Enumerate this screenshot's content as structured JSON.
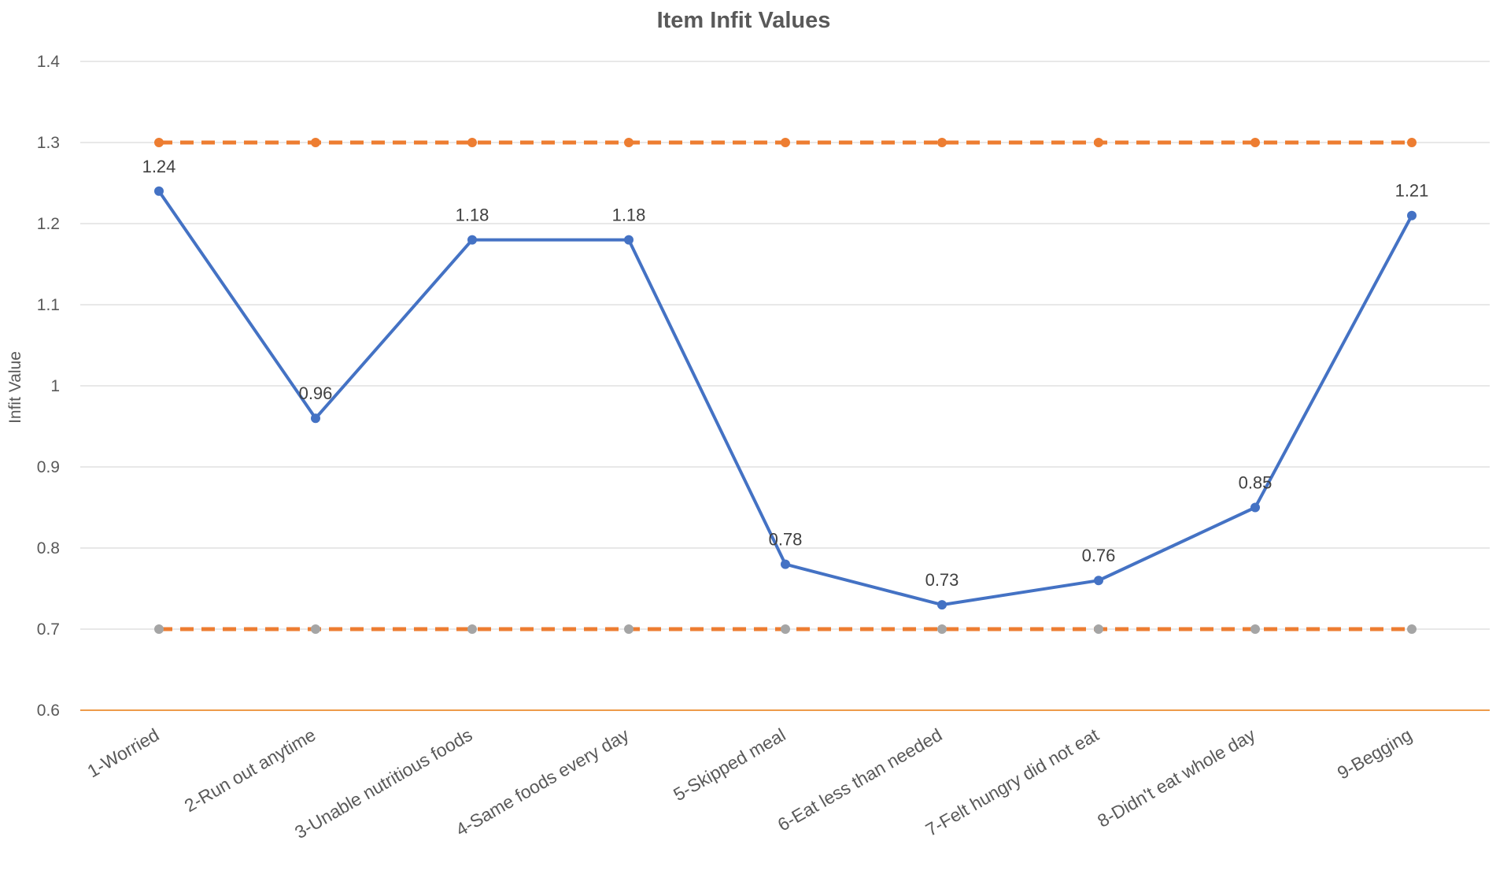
{
  "chart_data": {
    "type": "line",
    "title": "Item Infit Values",
    "xlabel": "",
    "ylabel": "Infit Value",
    "categories": [
      "1-Worried",
      "2-Run out anytime",
      "3-Unable nutritious foods",
      "4-Same foods every day",
      "5-Skipped meal",
      "6-Eat less than needed",
      "7-Felt hungry did not eat",
      "8-Didn't eat whole day",
      "9-Begging"
    ],
    "ylim": [
      0.6,
      1.4
    ],
    "yticks": [
      0.6,
      0.7,
      0.8,
      0.9,
      1,
      1.1,
      1.2,
      1.3,
      1.4
    ],
    "ytick_labels": [
      "0.6",
      "0.7",
      "0.8",
      "0.9",
      "1",
      "1.1",
      "1.2",
      "1.3",
      "1.4"
    ],
    "grid": true,
    "legend": "none",
    "series": [
      {
        "values": [
          1.24,
          0.96,
          1.18,
          1.18,
          0.78,
          0.73,
          0.76,
          0.85,
          1.21
        ],
        "labels": [
          "1.24",
          "0.96",
          "1.18",
          "1.18",
          "0.78",
          "0.73",
          "0.76",
          "0.85",
          "1.21"
        ],
        "color": "#4472c4",
        "style": "solid",
        "marker_color": "#4472c4",
        "show_labels": true
      },
      {
        "values": [
          1.3,
          1.3,
          1.3,
          1.3,
          1.3,
          1.3,
          1.3,
          1.3,
          1.3
        ],
        "color": "#ed7d31",
        "style": "dashed",
        "marker_color": "#ed7d31",
        "show_labels": false
      },
      {
        "values": [
          0.7,
          0.7,
          0.7,
          0.7,
          0.7,
          0.7,
          0.7,
          0.7,
          0.7
        ],
        "color": "#ed7d31",
        "style": "dashed",
        "marker_color": "#a5a5a5",
        "show_labels": false
      }
    ],
    "axis_color": "#ed9b4a",
    "gridline_color": "#d9d9d9"
  }
}
